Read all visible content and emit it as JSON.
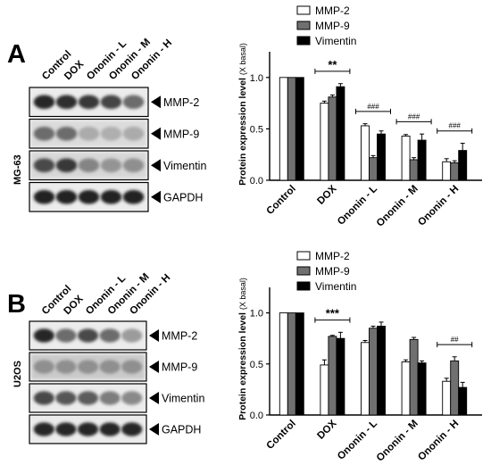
{
  "panels": [
    {
      "letter": "A",
      "cell_line": "MG-63",
      "lanes": [
        "Control",
        "DOX",
        "Ononin - L",
        "Ononin - M",
        "Ononin - H"
      ],
      "blots": [
        {
          "label": "MMP-2",
          "intensity": [
            0.85,
            0.82,
            0.78,
            0.72,
            0.55
          ],
          "noise": 0.05
        },
        {
          "label": "MMP-9",
          "intensity": [
            0.55,
            0.55,
            0.28,
            0.26,
            0.28
          ],
          "noise": 0.22
        },
        {
          "label": "Vimentin",
          "intensity": [
            0.7,
            0.78,
            0.45,
            0.38,
            0.4
          ],
          "noise": 0.28
        },
        {
          "label": "GAPDH",
          "intensity": [
            0.88,
            0.88,
            0.88,
            0.88,
            0.88
          ],
          "noise": 0.03
        }
      ]
    },
    {
      "letter": "B",
      "cell_line": "U2OS",
      "lanes": [
        "Control",
        "DOX",
        "Ononin - L",
        "Ononin - M",
        "Ononin - H"
      ],
      "blots": [
        {
          "label": "MMP-2",
          "intensity": [
            0.85,
            0.55,
            0.7,
            0.55,
            0.35
          ],
          "noise": 0.04
        },
        {
          "label": "MMP-9",
          "intensity": [
            0.4,
            0.4,
            0.4,
            0.4,
            0.4
          ],
          "noise": 0.45
        },
        {
          "label": "Vimentin",
          "intensity": [
            0.7,
            0.65,
            0.62,
            0.48,
            0.42
          ],
          "noise": 0.06
        },
        {
          "label": "GAPDH",
          "intensity": [
            0.85,
            0.85,
            0.85,
            0.85,
            0.85
          ],
          "noise": 0.02
        }
      ]
    }
  ],
  "chart_data": [
    {
      "type": "bar",
      "ylabel": "Protein expression level",
      "ylabel_unit": "(X basal)",
      "categories": [
        "Control",
        "DOX",
        "Ononin - L",
        "Ononin - M",
        "Ononin - H"
      ],
      "ylim": [
        0,
        1.25
      ],
      "yticks": [
        "0.0",
        "0.5",
        "1.0"
      ],
      "legend": "top",
      "series": [
        {
          "name": "MMP-2",
          "color": "#ffffff",
          "values": [
            1.0,
            0.75,
            0.53,
            0.43,
            0.18
          ],
          "errors": [
            0,
            0.02,
            0.02,
            0.015,
            0.03
          ]
        },
        {
          "name": "MMP-9",
          "color": "#707070",
          "values": [
            1.0,
            0.81,
            0.22,
            0.2,
            0.17
          ],
          "errors": [
            0,
            0.02,
            0.02,
            0.02,
            0.02
          ]
        },
        {
          "name": "Vimentin",
          "color": "#000000",
          "values": [
            1.0,
            0.91,
            0.45,
            0.39,
            0.29
          ],
          "errors": [
            0,
            0.03,
            0.03,
            0.06,
            0.07
          ]
        }
      ],
      "annotations": [
        {
          "text": "**",
          "from": 1,
          "to": 1
        },
        {
          "text": "###",
          "from": 2,
          "to": 2
        },
        {
          "text": "###",
          "from": 3,
          "to": 3
        },
        {
          "text": "###",
          "from": 4,
          "to": 4
        }
      ]
    },
    {
      "type": "bar",
      "ylabel": "Protein expression level",
      "ylabel_unit": "(X basal)",
      "categories": [
        "Control",
        "DOX",
        "Ononin - L",
        "Ononin - M",
        "Ononin - H"
      ],
      "ylim": [
        0,
        1.25
      ],
      "yticks": [
        "0.0",
        "0.5",
        "1.0"
      ],
      "legend": "top",
      "series": [
        {
          "name": "MMP-2",
          "color": "#ffffff",
          "values": [
            1.0,
            0.49,
            0.71,
            0.52,
            0.33
          ],
          "errors": [
            0,
            0.05,
            0.02,
            0.02,
            0.03
          ]
        },
        {
          "name": "MMP-9",
          "color": "#707070",
          "values": [
            1.0,
            0.77,
            0.85,
            0.74,
            0.53
          ],
          "errors": [
            0,
            0.01,
            0.02,
            0.02,
            0.04
          ]
        },
        {
          "name": "Vimentin",
          "color": "#000000",
          "values": [
            1.0,
            0.75,
            0.87,
            0.51,
            0.27
          ],
          "errors": [
            0,
            0.06,
            0.04,
            0.02,
            0.05
          ]
        }
      ],
      "annotations": [
        {
          "text": "***",
          "from": 1,
          "to": 1
        },
        {
          "text": "##",
          "from": 4,
          "to": 4
        }
      ]
    }
  ]
}
